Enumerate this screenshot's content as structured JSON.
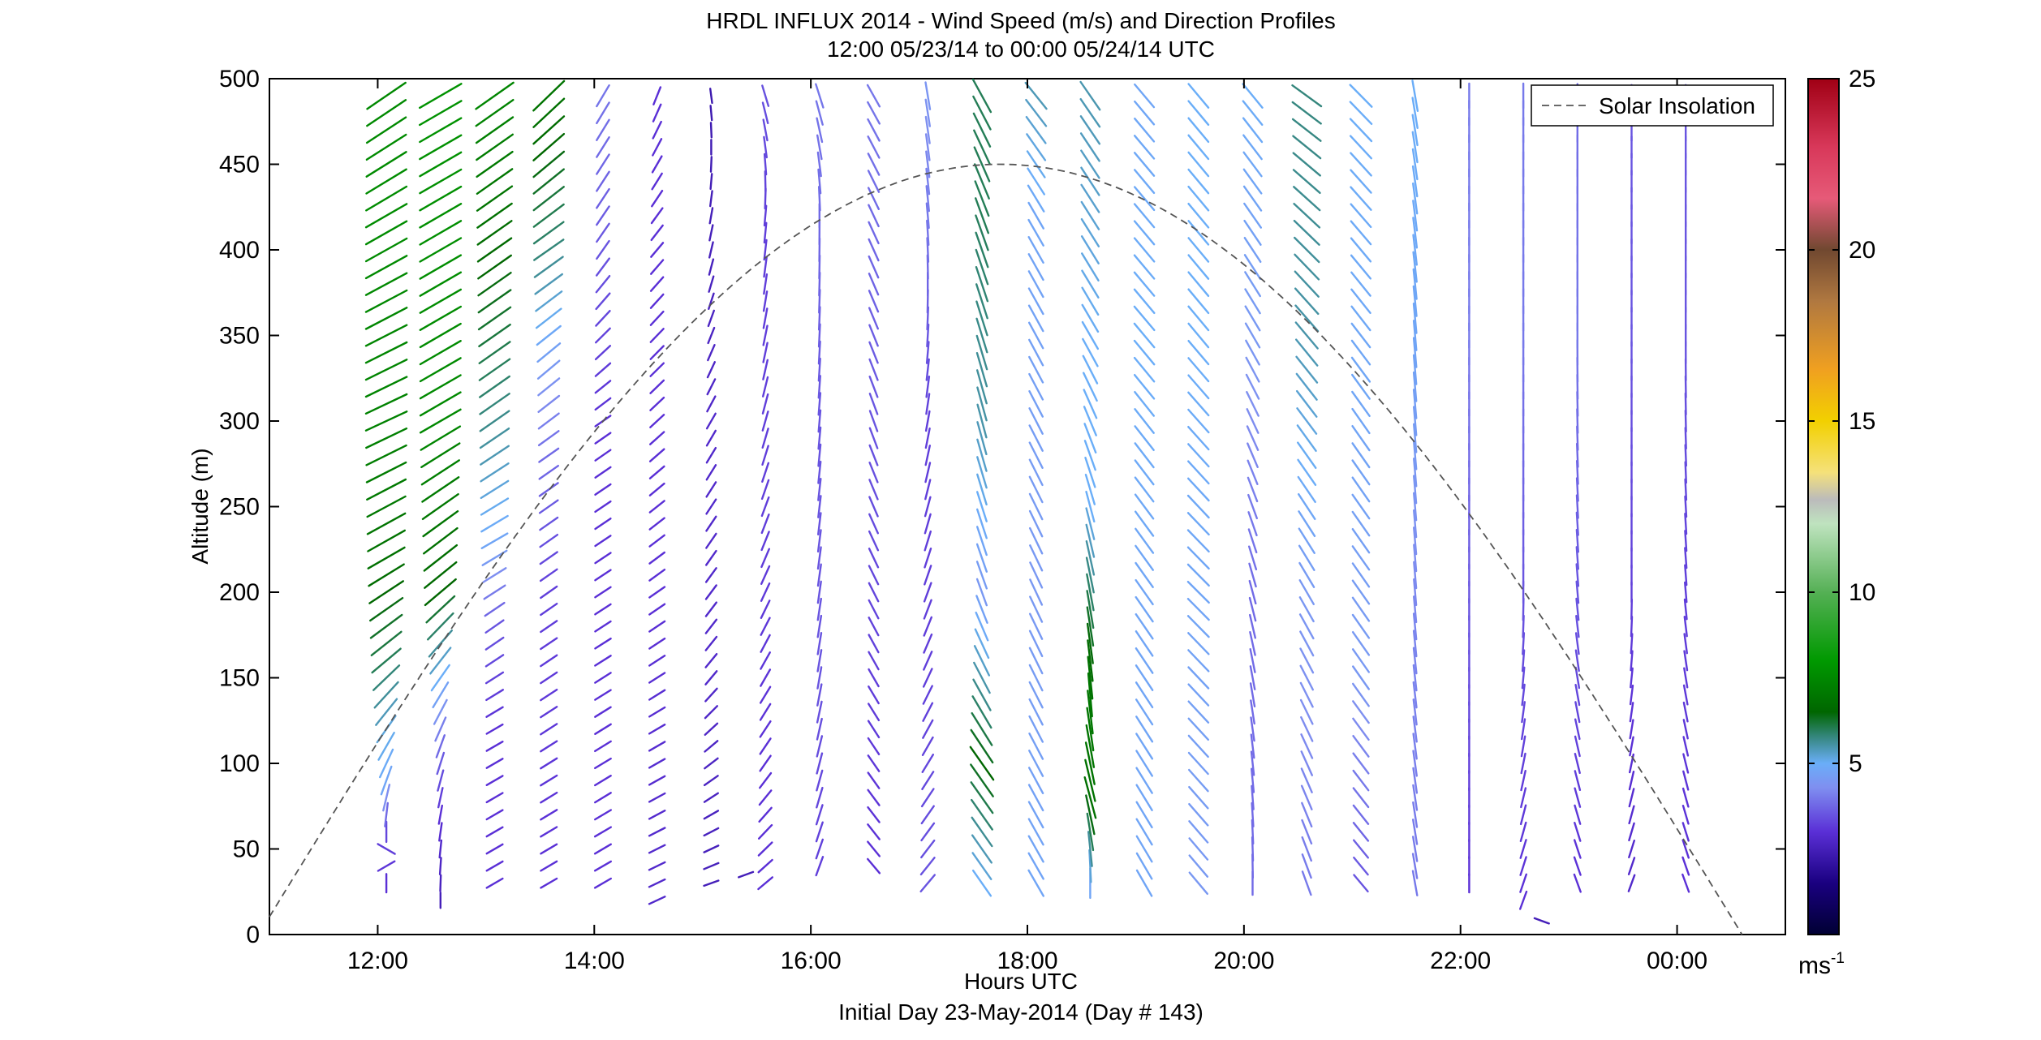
{
  "chart_data": {
    "type": "wind-barb-profile",
    "title": "HRDL INFLUX 2014 - Wind Speed (m/s) and Direction Profiles",
    "subtitle": "12:00 05/23/14 to 00:00 05/24/14  UTC",
    "xlabel": "Hours UTC",
    "xlabel2": "Initial Day 23-May-2014 (Day # 143)",
    "ylabel": "Altitude (m)",
    "xlim_hours": [
      11.0,
      25.0
    ],
    "ylim": [
      0,
      500
    ],
    "x_ticks": [
      {
        "value": 12,
        "label": "12:00"
      },
      {
        "value": 14,
        "label": "14:00"
      },
      {
        "value": 16,
        "label": "16:00"
      },
      {
        "value": 18,
        "label": "18:00"
      },
      {
        "value": 20,
        "label": "20:00"
      },
      {
        "value": 22,
        "label": "22:00"
      },
      {
        "value": 24,
        "label": "00:00"
      }
    ],
    "y_ticks": [
      0,
      50,
      100,
      150,
      200,
      250,
      300,
      350,
      400,
      450,
      500
    ],
    "grid": false,
    "legend": {
      "position": "top-right",
      "entries": [
        {
          "label": "Solar Insolation",
          "style": "dashed",
          "color": "#555555"
        }
      ]
    },
    "colorbar": {
      "min": 0,
      "max": 25,
      "ticks": [
        5,
        10,
        15,
        20,
        25
      ],
      "unit_label": "ms",
      "unit_exponent": "-1",
      "stops": [
        {
          "v": 0,
          "color": "#000033"
        },
        {
          "v": 1.5,
          "color": "#1a0080"
        },
        {
          "v": 3,
          "color": "#5a2fd6"
        },
        {
          "v": 4.3,
          "color": "#7f8ff0"
        },
        {
          "v": 5,
          "color": "#6aaef8"
        },
        {
          "v": 5.7,
          "color": "#3a8a8a"
        },
        {
          "v": 6.5,
          "color": "#006600"
        },
        {
          "v": 8,
          "color": "#009900"
        },
        {
          "v": 10,
          "color": "#55b055"
        },
        {
          "v": 12,
          "color": "#bfe3bf"
        },
        {
          "v": 12.7,
          "color": "#bbbbbb"
        },
        {
          "v": 13.5,
          "color": "#f5e17a"
        },
        {
          "v": 15,
          "color": "#f2d000"
        },
        {
          "v": 16.5,
          "color": "#f0a020"
        },
        {
          "v": 18.5,
          "color": "#b07840"
        },
        {
          "v": 20,
          "color": "#704830"
        },
        {
          "v": 21.5,
          "color": "#e65a78"
        },
        {
          "v": 23,
          "color": "#d8385a"
        },
        {
          "v": 25,
          "color": "#a00014"
        }
      ]
    },
    "solar_insolation_curve": {
      "peak_time_hours": 17.75,
      "peak_altitude": 450,
      "points": [
        [
          11.0,
          28
        ],
        [
          12.0,
          125
        ],
        [
          13.0,
          221
        ],
        [
          14.0,
          305
        ],
        [
          15.0,
          375
        ],
        [
          16.0,
          425
        ],
        [
          17.0,
          447
        ],
        [
          17.75,
          450
        ],
        [
          18.5,
          445
        ],
        [
          19.5,
          420
        ],
        [
          20.5,
          372
        ],
        [
          21.5,
          298
        ],
        [
          22.5,
          194
        ],
        [
          23.5,
          82
        ],
        [
          24.6,
          0
        ]
      ]
    },
    "profiles": [
      {
        "time": 12.08,
        "min_alt": 30,
        "segments": [
          [
            30,
            3.0,
            0
          ],
          [
            60,
            3.3,
            180
          ],
          [
            90,
            4.8,
            200
          ],
          [
            120,
            5.2,
            215
          ],
          [
            160,
            6.0,
            230
          ],
          [
            220,
            6.8,
            240
          ],
          [
            300,
            7.3,
            245
          ],
          [
            420,
            7.6,
            240
          ],
          [
            500,
            7.5,
            235
          ]
        ]
      },
      {
        "time": 12.58,
        "min_alt": 20,
        "segments": [
          [
            20,
            2.5,
            180
          ],
          [
            70,
            3.0,
            190
          ],
          [
            110,
            3.8,
            200
          ],
          [
            150,
            5.0,
            215
          ],
          [
            200,
            6.5,
            230
          ],
          [
            300,
            7.5,
            240
          ],
          [
            500,
            7.8,
            240
          ]
        ]
      },
      {
        "time": 13.08,
        "min_alt": 30,
        "segments": [
          [
            30,
            3.0,
            240
          ],
          [
            120,
            3.0,
            240
          ],
          [
            180,
            3.5,
            235
          ],
          [
            230,
            4.8,
            240
          ],
          [
            300,
            5.7,
            235
          ],
          [
            500,
            7.5,
            235
          ]
        ]
      },
      {
        "time": 13.58,
        "min_alt": 30,
        "segments": [
          [
            30,
            3.0,
            240
          ],
          [
            200,
            3.2,
            235
          ],
          [
            280,
            3.8,
            235
          ],
          [
            330,
            4.5,
            230
          ],
          [
            400,
            5.8,
            235
          ],
          [
            500,
            7.0,
            225
          ]
        ]
      },
      {
        "time": 14.08,
        "min_alt": 30,
        "segments": [
          [
            30,
            3.0,
            240
          ],
          [
            300,
            3.0,
            235
          ],
          [
            400,
            3.5,
            215
          ],
          [
            500,
            4.0,
            210
          ]
        ]
      },
      {
        "time": 14.58,
        "min_alt": 20,
        "segments": [
          [
            20,
            2.8,
            245
          ],
          [
            200,
            3.0,
            235
          ],
          [
            400,
            3.0,
            220
          ],
          [
            500,
            3.0,
            200
          ]
        ]
      },
      {
        "time": 15.08,
        "min_alt": 30,
        "segments": [
          [
            30,
            2.5,
            250
          ],
          [
            150,
            2.8,
            220
          ],
          [
            300,
            2.8,
            210
          ],
          [
            420,
            2.5,
            190
          ],
          [
            500,
            2.3,
            170
          ]
        ]
      },
      {
        "time": 15.58,
        "min_alt": 30,
        "segments": [
          [
            30,
            3.0,
            230
          ],
          [
            100,
            3.0,
            215
          ],
          [
            250,
            3.2,
            200
          ],
          [
            420,
            3.2,
            185
          ],
          [
            500,
            3.5,
            160
          ]
        ]
      },
      {
        "time": 16.08,
        "min_alt": 40,
        "segments": [
          [
            40,
            3.2,
            200
          ],
          [
            150,
            3.5,
            190
          ],
          [
            300,
            3.5,
            185
          ],
          [
            420,
            3.8,
            180
          ],
          [
            500,
            4.0,
            160
          ]
        ]
      },
      {
        "time": 16.58,
        "min_alt": 40,
        "segments": [
          [
            40,
            3.0,
            140
          ],
          [
            150,
            3.2,
            150
          ],
          [
            300,
            3.5,
            160
          ],
          [
            420,
            3.8,
            155
          ],
          [
            500,
            4.0,
            150
          ]
        ]
      },
      {
        "time": 17.08,
        "min_alt": 30,
        "segments": [
          [
            30,
            3.5,
            220
          ],
          [
            150,
            3.2,
            205
          ],
          [
            300,
            3.2,
            190
          ],
          [
            420,
            4.0,
            175
          ],
          [
            500,
            4.5,
            170
          ]
        ]
      },
      {
        "time": 17.58,
        "min_alt": 30,
        "segments": [
          [
            30,
            5.0,
            145
          ],
          [
            100,
            6.5,
            145
          ],
          [
            200,
            4.5,
            160
          ],
          [
            300,
            5.5,
            165
          ],
          [
            420,
            6.0,
            160
          ],
          [
            500,
            6.0,
            150
          ]
        ]
      },
      {
        "time": 18.08,
        "min_alt": 30,
        "segments": [
          [
            30,
            4.8,
            150
          ],
          [
            200,
            4.5,
            155
          ],
          [
            420,
            4.8,
            150
          ],
          [
            500,
            5.5,
            140
          ]
        ]
      },
      {
        "time": 18.58,
        "min_alt": 30,
        "segments": [
          [
            30,
            4.8,
            180
          ],
          [
            80,
            6.8,
            165
          ],
          [
            140,
            7.0,
            175
          ],
          [
            250,
            5.0,
            165
          ],
          [
            350,
            5.0,
            150
          ],
          [
            500,
            5.5,
            145
          ]
        ]
      },
      {
        "time": 19.08,
        "min_alt": 30,
        "segments": [
          [
            30,
            4.8,
            150
          ],
          [
            200,
            4.8,
            145
          ],
          [
            350,
            5.0,
            140
          ],
          [
            500,
            4.8,
            140
          ]
        ]
      },
      {
        "time": 19.58,
        "min_alt": 30,
        "segments": [
          [
            30,
            4.5,
            140
          ],
          [
            200,
            4.8,
            135
          ],
          [
            350,
            5.0,
            140
          ],
          [
            500,
            5.0,
            140
          ]
        ]
      },
      {
        "time": 20.08,
        "min_alt": 30,
        "segments": [
          [
            30,
            3.8,
            180
          ],
          [
            200,
            3.8,
            165
          ],
          [
            350,
            4.5,
            150
          ],
          [
            500,
            5.0,
            140
          ]
        ]
      },
      {
        "time": 20.58,
        "min_alt": 30,
        "segments": [
          [
            30,
            4.0,
            160
          ],
          [
            200,
            4.5,
            150
          ],
          [
            350,
            5.5,
            140
          ],
          [
            500,
            5.8,
            125
          ]
        ]
      },
      {
        "time": 21.08,
        "min_alt": 30,
        "segments": [
          [
            30,
            3.5,
            140
          ],
          [
            150,
            4.5,
            145
          ],
          [
            300,
            4.8,
            145
          ],
          [
            500,
            5.0,
            135
          ]
        ]
      },
      {
        "time": 21.58,
        "min_alt": 30,
        "segments": [
          [
            30,
            4.0,
            170
          ],
          [
            200,
            4.2,
            175
          ],
          [
            350,
            4.8,
            175
          ],
          [
            500,
            5.0,
            170
          ]
        ]
      },
      {
        "time": 22.08,
        "min_alt": 30,
        "segments": [
          [
            30,
            3.0,
            180
          ],
          [
            200,
            3.5,
            180
          ],
          [
            350,
            4.0,
            180
          ],
          [
            500,
            4.0,
            180
          ]
        ]
      },
      {
        "time": 22.58,
        "min_alt": 20,
        "segments": [
          [
            20,
            3.0,
            200
          ],
          [
            200,
            3.5,
            180
          ],
          [
            350,
            4.0,
            180
          ],
          [
            500,
            4.0,
            180
          ]
        ]
      },
      {
        "time": 23.08,
        "min_alt": 30,
        "segments": [
          [
            30,
            3.0,
            160
          ],
          [
            200,
            3.5,
            175
          ],
          [
            350,
            4.0,
            180
          ],
          [
            500,
            3.8,
            180
          ]
        ]
      },
      {
        "time": 23.58,
        "min_alt": 30,
        "segments": [
          [
            30,
            2.8,
            200
          ],
          [
            200,
            3.2,
            180
          ],
          [
            350,
            3.5,
            180
          ],
          [
            500,
            3.5,
            180
          ]
        ]
      },
      {
        "time": 24.08,
        "min_alt": 30,
        "segments": [
          [
            30,
            3.0,
            160
          ],
          [
            200,
            3.2,
            175
          ],
          [
            350,
            3.5,
            180
          ],
          [
            500,
            3.5,
            180
          ]
        ]
      }
    ],
    "extra_vectors": [
      {
        "time": 15.4,
        "alt": 35,
        "speed": 2.5,
        "dir": 250
      },
      {
        "time": 22.75,
        "alt": 8,
        "speed": 2.5,
        "dir": 290
      }
    ]
  }
}
